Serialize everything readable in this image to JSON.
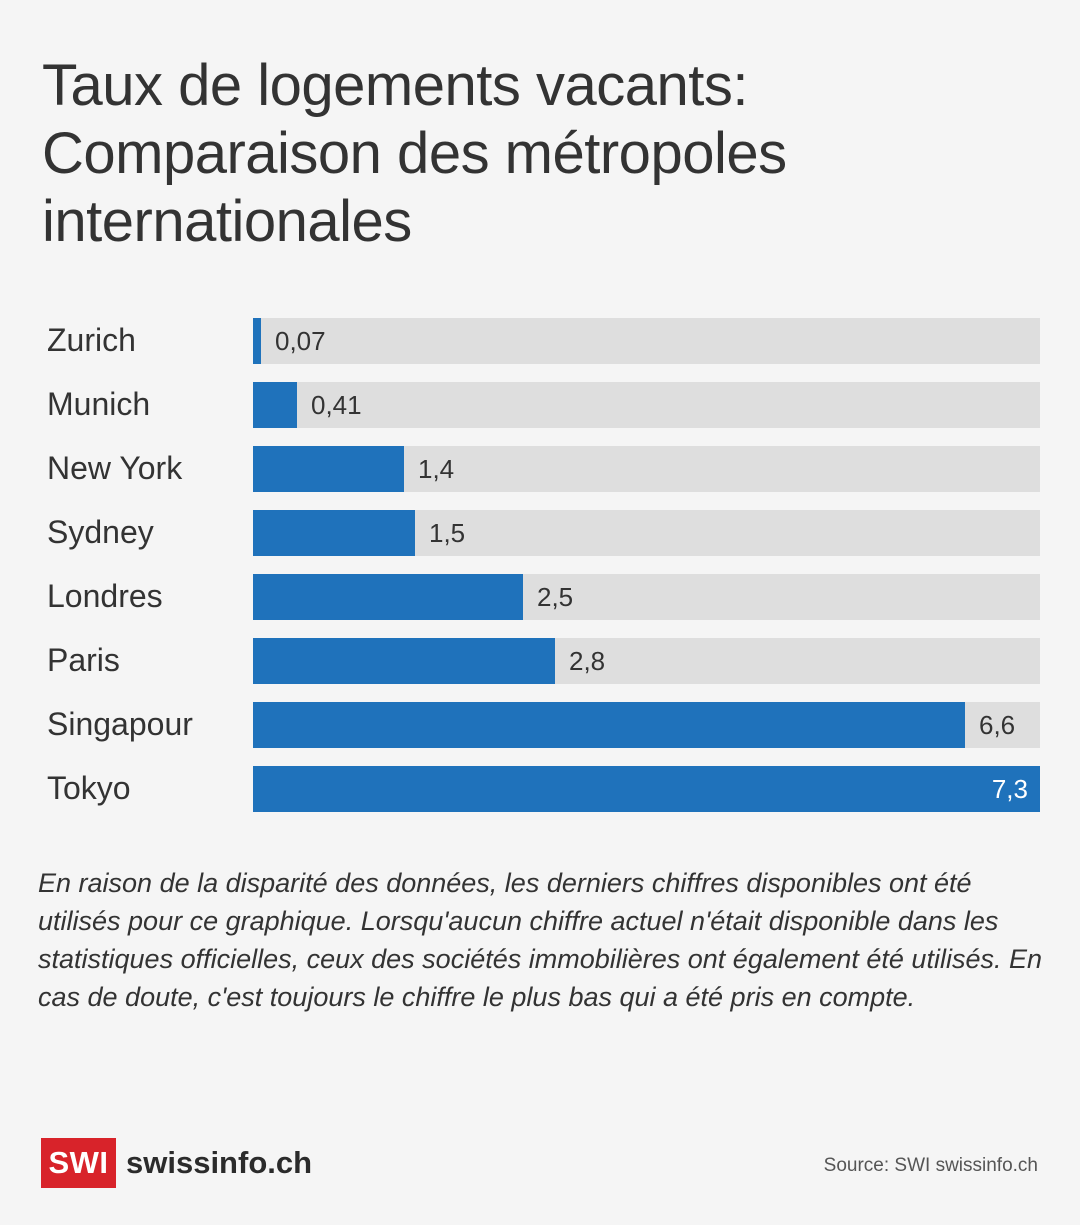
{
  "title": {
    "line1": "Taux de logements vacants:",
    "line2": "Comparaison des métropoles",
    "line3": "internationales"
  },
  "chart_data": {
    "type": "bar",
    "orientation": "horizontal",
    "categories": [
      "Zurich",
      "Munich",
      "New York",
      "Sydney",
      "Londres",
      "Paris",
      "Singapour",
      "Tokyo"
    ],
    "values": [
      0.07,
      0.41,
      1.4,
      1.5,
      2.5,
      2.8,
      6.6,
      7.3
    ],
    "value_labels": [
      "0,07",
      "0,41",
      "1,4",
      "1,5",
      "2,5",
      "2,8",
      "6,6",
      "7,3"
    ],
    "xlim": [
      0,
      7.3
    ],
    "bar_color": "#1f72bb",
    "track_color": "#dedede",
    "grid": false
  },
  "note": "En raison de la disparité des données, les derniers chiffres disponibles ont été utilisés pour ce graphique. Lorsqu'aucun chiffre actuel n'était disponible dans les statistiques officielles, ceux des sociétés immobilières ont également été utilisés. En cas de doute, c'est toujours le chiffre le plus bas qui a été pris en compte.",
  "footer": {
    "logo_box": "SWI",
    "logo_text": "swissinfo.ch",
    "logo_color": "#d8232a",
    "source": "Source: SWI swissinfo.ch"
  }
}
